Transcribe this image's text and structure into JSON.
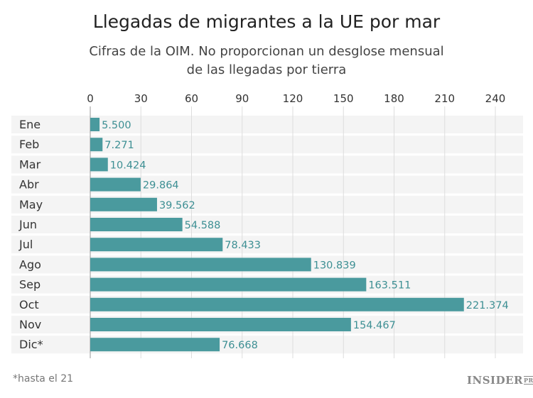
{
  "chart_data": {
    "type": "bar",
    "orientation": "horizontal",
    "title": "Llegadas de migrantes a la UE por mar",
    "subtitle": [
      "Cifras de la OIM. No proporcionan un desglose mensual",
      "de las llegadas por tierra"
    ],
    "categories": [
      "Ene",
      "Feb",
      "Mar",
      "Abr",
      "May",
      "Jun",
      "Jul",
      "Ago",
      "Sep",
      "Oct",
      "Nov",
      "Dic*"
    ],
    "values": [
      5.5,
      7.271,
      10.424,
      29.864,
      39.562,
      54.588,
      78.433,
      130.839,
      163.511,
      221.374,
      154.467,
      76.668
    ],
    "data_labels": [
      "5.500",
      "7.271",
      "10.424",
      "29.864",
      "39.562",
      "54.588",
      "78.433",
      "130.839",
      "163.511",
      "221.374",
      "154.467",
      "76.668"
    ],
    "xticks": [
      0,
      30,
      60,
      90,
      120,
      150,
      180,
      210,
      240
    ],
    "xlim": [
      0,
      240
    ],
    "grid": true,
    "bar_color": "#4a9a9e",
    "label_color": "#3d8f93",
    "row_band_color": "#f4f4f4"
  },
  "footnote": "*hasta el 21",
  "logo": {
    "main": "INSIDER",
    "suffix": "PRO"
  }
}
